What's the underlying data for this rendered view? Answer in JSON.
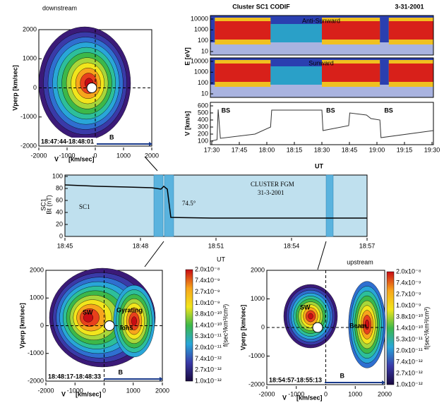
{
  "downstream": {
    "title": "downstream",
    "y_label": "Vperp [km/sec]",
    "x_label_v": "V",
    "x_label_unit": "[km/sec]",
    "yticks": [
      2000,
      1000,
      0,
      -1000,
      -2000
    ],
    "xticks": [
      -2000,
      -1000,
      0,
      1000,
      2000
    ],
    "time": "18:47:44-18:48:01",
    "b_label": "B"
  },
  "codif": {
    "title": "Cluster SC1 CODIF",
    "date": "3-31-2001",
    "panel_labels": [
      "Anti-Sunward",
      "Sunward"
    ],
    "e_label": "E [eV]",
    "e_ticks": [
      10000,
      1000,
      100,
      10
    ],
    "v_label": "V [km/s]",
    "v_ticks": [
      600,
      500,
      400,
      300,
      200,
      100
    ],
    "bs_labels": [
      "BS",
      "BS",
      "BS"
    ],
    "xticks": [
      "17:30",
      "17:45",
      "18:00",
      "18:15",
      "18:30",
      "18:45",
      "19:00",
      "19:15",
      "19:30"
    ],
    "x_label": "UT"
  },
  "fgm": {
    "title": "CLUSTER FGM",
    "date": "31-3-2001",
    "sc": "SC1",
    "y_label_sc": "SC1",
    "y_label": "Bt (nT)",
    "angle": "74.5°",
    "yticks": [
      100,
      80,
      60,
      40,
      20,
      0
    ],
    "xticks": [
      "18:45",
      "18:48",
      "18:51",
      "18:54",
      "18:57"
    ],
    "x_label": "UT"
  },
  "bottom_left": {
    "y_label": "Vperp [km/sec]",
    "x_label_v": "V",
    "x_label_unit": "[km/sec]",
    "yticks": [
      2000,
      1000,
      0,
      -1000,
      -2000
    ],
    "xticks": [
      -2000,
      -1000,
      0,
      1000,
      2000
    ],
    "labels": [
      "SW",
      "Gyrating",
      "Ions"
    ],
    "time": "18:48:17-18:48:33",
    "b_label": "B"
  },
  "bottom_right": {
    "title": "upstream",
    "y_label": "Vperp [km/sec]",
    "x_label_v": "V",
    "x_label_unit": "[km/sec]",
    "yticks": [
      2000,
      1000,
      0,
      -1000,
      -2000
    ],
    "xticks": [
      -2000,
      -1000,
      0,
      1000,
      2000
    ],
    "labels": [
      "SW",
      "Beam"
    ],
    "time": "18:54:57-18:55:13",
    "b_label": "B"
  },
  "colorbar": {
    "ticks": [
      "2.0x10⁻⁸",
      "7.4x10⁻⁹",
      "2.7x10⁻⁹",
      "1.0x10⁻⁹",
      "3.8x10⁻¹⁰",
      "1.4x10⁻¹⁰",
      "5.3x10⁻¹¹",
      "2.0x10⁻¹¹",
      "7.4x10⁻¹²",
      "2.7x10⁻¹²",
      "1.0x10⁻¹²"
    ],
    "label": "f(sec³/km³/cm³)"
  }
}
